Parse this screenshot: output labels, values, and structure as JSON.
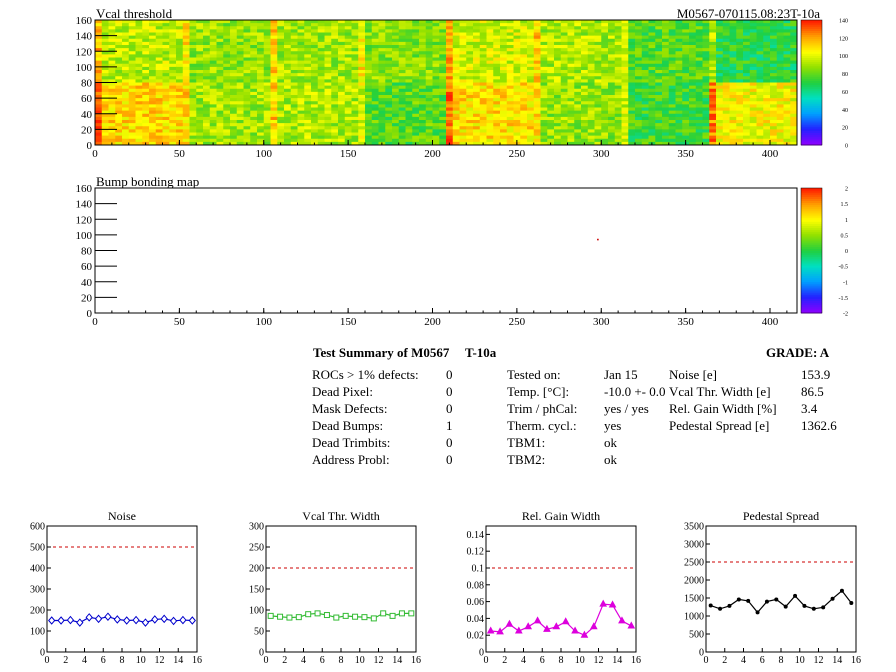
{
  "maps": [
    {
      "title": "Vcal threshold",
      "right_title": "M0567-070115.08:23T-10a",
      "x_ticks": [
        0,
        50,
        100,
        150,
        200,
        250,
        300,
        350,
        400
      ],
      "y_ticks": [
        0,
        20,
        40,
        60,
        80,
        100,
        120,
        140,
        160
      ],
      "z_ticks": [
        "0",
        "20",
        "40",
        "60",
        "80",
        "100",
        "120",
        "140"
      ]
    },
    {
      "title": "Bump bonding map",
      "x_ticks": [
        0,
        50,
        100,
        150,
        200,
        250,
        300,
        350,
        400
      ],
      "y_ticks": [
        0,
        20,
        40,
        60,
        80,
        100,
        120,
        140,
        160
      ],
      "z_ticks": [
        "-2",
        "-1.5",
        "-1",
        "-0.5",
        "0",
        "0.5",
        "1",
        "1.5",
        "2"
      ]
    }
  ],
  "summary": {
    "title": "Test Summary of M0567",
    "temp_label": "T-10a",
    "grade": "GRADE:  A",
    "col1": [
      {
        "label": "ROCs > 1% defects:",
        "value": "0"
      },
      {
        "label": "Dead Pixel:",
        "value": "0"
      },
      {
        "label": "Mask Defects:",
        "value": "0"
      },
      {
        "label": "Dead Bumps:",
        "value": "1"
      },
      {
        "label": "Dead Trimbits:",
        "value": "0"
      },
      {
        "label": "Address Probl:",
        "value": "0"
      }
    ],
    "col2": [
      {
        "label": "Tested on:",
        "value": "Jan 15"
      },
      {
        "label": "Temp. [°C]:",
        "value": "-10.0 +- 0.0"
      },
      {
        "label": "Trim / phCal:",
        "value": "yes / yes"
      },
      {
        "label": "Therm. cycl.:",
        "value": "yes"
      },
      {
        "label": "TBM1:",
        "value": "ok"
      },
      {
        "label": "TBM2:",
        "value": "ok"
      }
    ],
    "col3": [
      {
        "label": "Noise [e]",
        "value": "153.9"
      },
      {
        "label": "Vcal Thr. Width [e]",
        "value": "86.5"
      },
      {
        "label": "Rel. Gain Width [%]",
        "value": "3.4"
      },
      {
        "label": "Pedestal Spread [e]",
        "value": "1362.6"
      }
    ]
  },
  "chart_data": [
    {
      "type": "heatmap",
      "title": "Vcal threshold",
      "xlim": [
        0,
        416
      ],
      "ylim": [
        0,
        160
      ],
      "zlim": [
        0,
        140
      ],
      "tile_mean_values": [
        [
          95,
          88,
          90,
          86,
          98,
          92,
          78,
          70
        ],
        [
          112,
          90,
          92,
          78,
          110,
          88,
          74,
          104
        ]
      ],
      "tile_rows_note_order": [
        "top row y 80-160",
        "bottom row y 0-80"
      ],
      "colors": [
        "#8b00ff",
        "#2222ff",
        "#00a0ff",
        "#00e0c0",
        "#20d040",
        "#90e000",
        "#ffff00",
        "#ffa000",
        "#ff2000"
      ]
    },
    {
      "type": "heatmap",
      "title": "Bump bonding map",
      "xlim": [
        0,
        416
      ],
      "ylim": [
        0,
        160
      ],
      "zlim": [
        -2,
        2
      ],
      "points": [
        {
          "x": 298,
          "y": 94,
          "z": 1
        }
      ]
    },
    {
      "type": "scatter",
      "title": "Noise",
      "x": [
        0,
        1,
        2,
        3,
        4,
        5,
        6,
        7,
        8,
        9,
        10,
        11,
        12,
        13,
        14,
        15
      ],
      "values": [
        150,
        150,
        152,
        140,
        165,
        158,
        168,
        155,
        150,
        152,
        140,
        155,
        158,
        148,
        152,
        150
      ],
      "xlim": [
        0,
        16
      ],
      "ylim": [
        0,
        600
      ],
      "x_ticks": [
        0,
        2,
        4,
        6,
        8,
        10,
        12,
        14,
        16
      ],
      "y_ticks": [
        0,
        100,
        200,
        300,
        400,
        500,
        600
      ],
      "threshold": 500,
      "color": "#0000cc",
      "marker": "diamond"
    },
    {
      "type": "scatter",
      "title": "Vcal Thr. Width",
      "x": [
        0,
        1,
        2,
        3,
        4,
        5,
        6,
        7,
        8,
        9,
        10,
        11,
        12,
        13,
        14,
        15
      ],
      "values": [
        86,
        84,
        82,
        83,
        90,
        92,
        88,
        82,
        86,
        84,
        83,
        80,
        92,
        86,
        92,
        92
      ],
      "xlim": [
        0,
        16
      ],
      "ylim": [
        0,
        300
      ],
      "x_ticks": [
        0,
        2,
        4,
        6,
        8,
        10,
        12,
        14,
        16
      ],
      "y_ticks": [
        0,
        50,
        100,
        150,
        200,
        250,
        300
      ],
      "threshold": 200,
      "color": "#33bb33",
      "marker": "square"
    },
    {
      "type": "scatter",
      "title": "Rel. Gain Width",
      "x": [
        0,
        1,
        2,
        3,
        4,
        5,
        6,
        7,
        8,
        9,
        10,
        11,
        12,
        13,
        14,
        15
      ],
      "values": [
        0.025,
        0.024,
        0.033,
        0.025,
        0.03,
        0.037,
        0.027,
        0.03,
        0.036,
        0.025,
        0.02,
        0.03,
        0.057,
        0.056,
        0.037,
        0.031
      ],
      "xlim": [
        0,
        16
      ],
      "ylim": [
        0,
        0.15
      ],
      "x_ticks": [
        0,
        2,
        4,
        6,
        8,
        10,
        12,
        14,
        16
      ],
      "y_ticks": [
        "0",
        "0.02",
        "0.04",
        "0.06",
        "0.08",
        "0.1",
        "0.12",
        "0.14"
      ],
      "threshold": 0.1,
      "color": "#dd00dd",
      "marker": "triangle"
    },
    {
      "type": "scatter",
      "title": "Pedestal Spread",
      "x": [
        0,
        1,
        2,
        3,
        4,
        5,
        6,
        7,
        8,
        9,
        10,
        11,
        12,
        13,
        14,
        15
      ],
      "values": [
        1290,
        1200,
        1280,
        1460,
        1420,
        1100,
        1400,
        1460,
        1260,
        1560,
        1280,
        1200,
        1240,
        1480,
        1700,
        1360
      ],
      "xlim": [
        0,
        16
      ],
      "ylim": [
        0,
        3500
      ],
      "x_ticks": [
        0,
        2,
        4,
        6,
        8,
        10,
        12,
        14,
        16
      ],
      "y_ticks": [
        0,
        500,
        1000,
        1500,
        2000,
        2500,
        3000,
        3500
      ],
      "threshold": 2500,
      "color": "#000000",
      "marker": "circle"
    }
  ]
}
